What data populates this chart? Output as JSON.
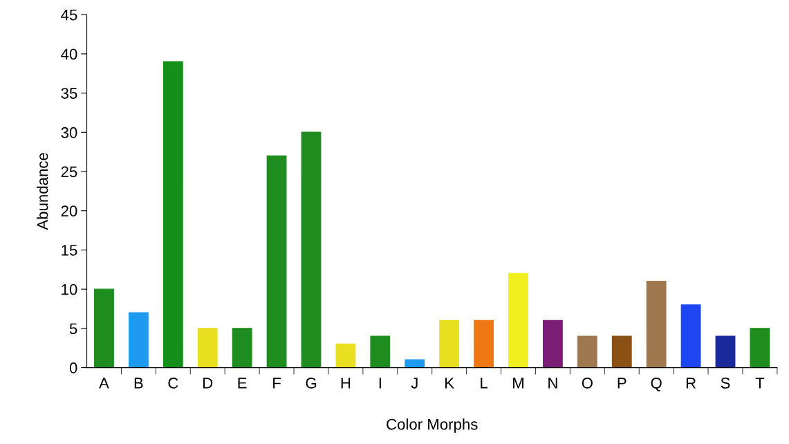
{
  "chart_data": {
    "type": "bar",
    "xlabel": "Color Morphs",
    "ylabel": "Abundance",
    "categories": [
      "A",
      "B",
      "C",
      "D",
      "E",
      "F",
      "G",
      "H",
      "I",
      "J",
      "K",
      "L",
      "M",
      "N",
      "O",
      "P",
      "Q",
      "R",
      "S",
      "T"
    ],
    "values": [
      10,
      7,
      39,
      5,
      5,
      27,
      30,
      3,
      4,
      1,
      6,
      6,
      12,
      6,
      4,
      4,
      11,
      8,
      4,
      5
    ],
    "colors": [
      "#1e8c1e",
      "#1e9bf0",
      "#14901a",
      "#e8e020",
      "#1e8c1e",
      "#1e8c1e",
      "#1e8c1e",
      "#e8e020",
      "#1e8c1e",
      "#1e9bf0",
      "#e8e020",
      "#f07814",
      "#f0f020",
      "#7a1e78",
      "#a07850",
      "#8a5014",
      "#a07850",
      "#1e46f0",
      "#1a2a9a",
      "#1e8c1e"
    ],
    "ylim": [
      0,
      45
    ],
    "yticks": [
      0,
      5,
      10,
      15,
      20,
      25,
      30,
      35,
      40,
      45
    ],
    "grid": false,
    "legend": false
  }
}
